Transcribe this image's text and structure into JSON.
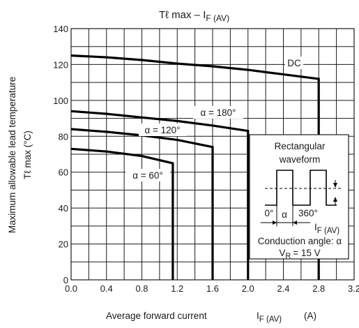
{
  "chart_data": {
    "type": "line",
    "title": "Tℓ max – I",
    "title_sub": "F (AV)",
    "xlabel": "Average forward current",
    "xlabel_symbol": "I",
    "xlabel_sub": "F (AV)",
    "xlabel_unit": "(A)",
    "ylabel_line1": "Maximum allowable lead temperature",
    "ylabel_line2": "Tℓ max   (°C)",
    "xlim": [
      0,
      3.2
    ],
    "ylim": [
      0,
      140
    ],
    "x_ticks": [
      "0.0",
      "0.4",
      "0.8",
      "1.2",
      "1.6",
      "2.0",
      "2.4",
      "2.8",
      "3.2"
    ],
    "y_ticks": [
      "0",
      "20",
      "40",
      "60",
      "80",
      "100",
      "120",
      "140"
    ],
    "grid": true,
    "series": [
      {
        "name": "DC",
        "x": [
          0,
          0.4,
          0.8,
          1.2,
          1.6,
          2.0,
          2.4,
          2.8,
          2.8
        ],
        "y": [
          125,
          124,
          122.5,
          120.5,
          119,
          117,
          114.5,
          112,
          0
        ]
      },
      {
        "name": "α = 180°",
        "x": [
          0,
          0.4,
          0.8,
          1.2,
          1.6,
          2.0,
          2.0
        ],
        "y": [
          94,
          92.5,
          90.5,
          88.5,
          86,
          83,
          0
        ]
      },
      {
        "name": "α = 120°",
        "x": [
          0,
          0.4,
          0.8,
          1.2,
          1.6,
          1.6
        ],
        "y": [
          84,
          82.5,
          80.5,
          78,
          74,
          0
        ]
      },
      {
        "name": "α = 60°",
        "x": [
          0,
          0.4,
          0.8,
          1.15,
          1.15
        ],
        "y": [
          73,
          71.5,
          69,
          65,
          0
        ]
      }
    ],
    "inset": {
      "title_line1": "Rectangular",
      "title_line2": "waveform",
      "angle_start": "0°",
      "angle_alpha": "α",
      "angle_end": "360°",
      "current_symbol": "I",
      "current_sub": "F (AV)",
      "conduction_label": "Conduction angle: α",
      "vr_symbol": "V",
      "vr_sub": "R",
      "vr_value": "= 15 V"
    }
  }
}
